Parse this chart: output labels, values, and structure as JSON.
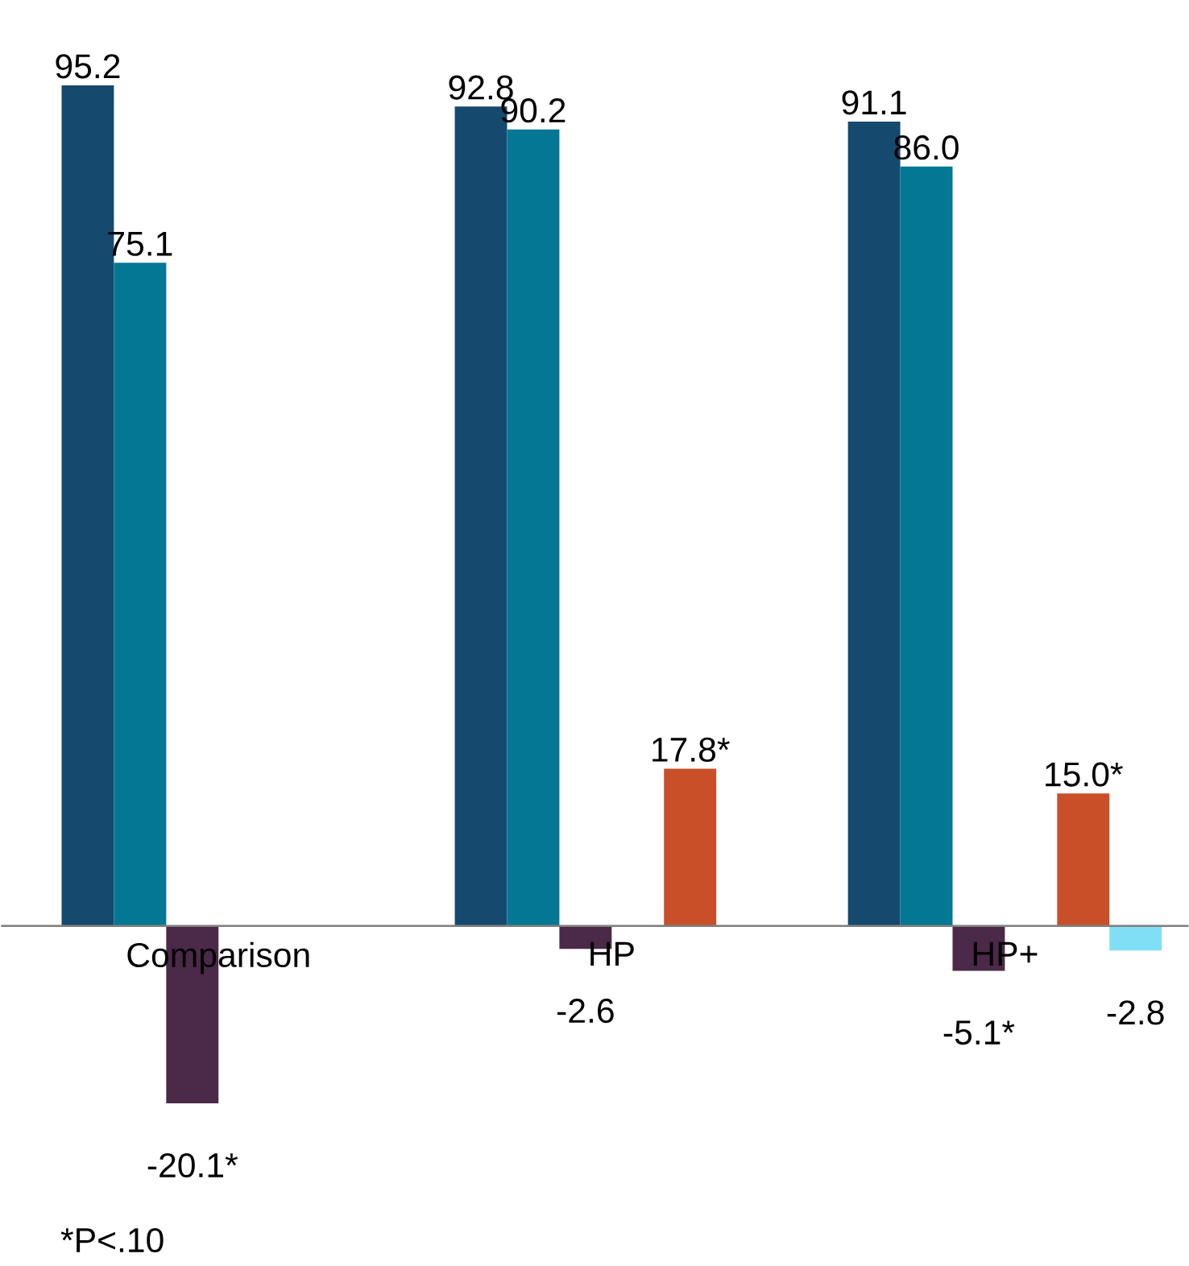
{
  "chart_data": {
    "type": "bar",
    "categories": [
      "Comparison",
      "HP",
      "HP+"
    ],
    "series": [
      {
        "color": "#154a6e",
        "values": [
          95.2,
          92.8,
          91.1
        ],
        "value_labels": [
          "95.2",
          "92.8",
          "91.1"
        ]
      },
      {
        "color": "#047794",
        "values": [
          75.1,
          90.2,
          86.0
        ],
        "value_labels": [
          "75.1",
          "90.2",
          "86.0"
        ]
      },
      {
        "color": "#4a2a48",
        "values": [
          -20.1,
          -2.6,
          -5.1
        ],
        "value_labels": [
          "-20.1*",
          "-2.6",
          "-5.1*"
        ]
      },
      {
        "color": "#a5a5a5",
        "values": [
          null,
          null,
          null
        ]
      },
      {
        "color": "#c84f28",
        "values": [
          null,
          17.8,
          15.0
        ],
        "value_labels": [
          null,
          "17.8*",
          "15.0*"
        ]
      },
      {
        "color": "#7fdff5",
        "values": [
          null,
          null,
          -2.8
        ],
        "value_labels": [
          null,
          null,
          "-2.8"
        ]
      }
    ],
    "annotations": [
      "*P<.10"
    ]
  }
}
